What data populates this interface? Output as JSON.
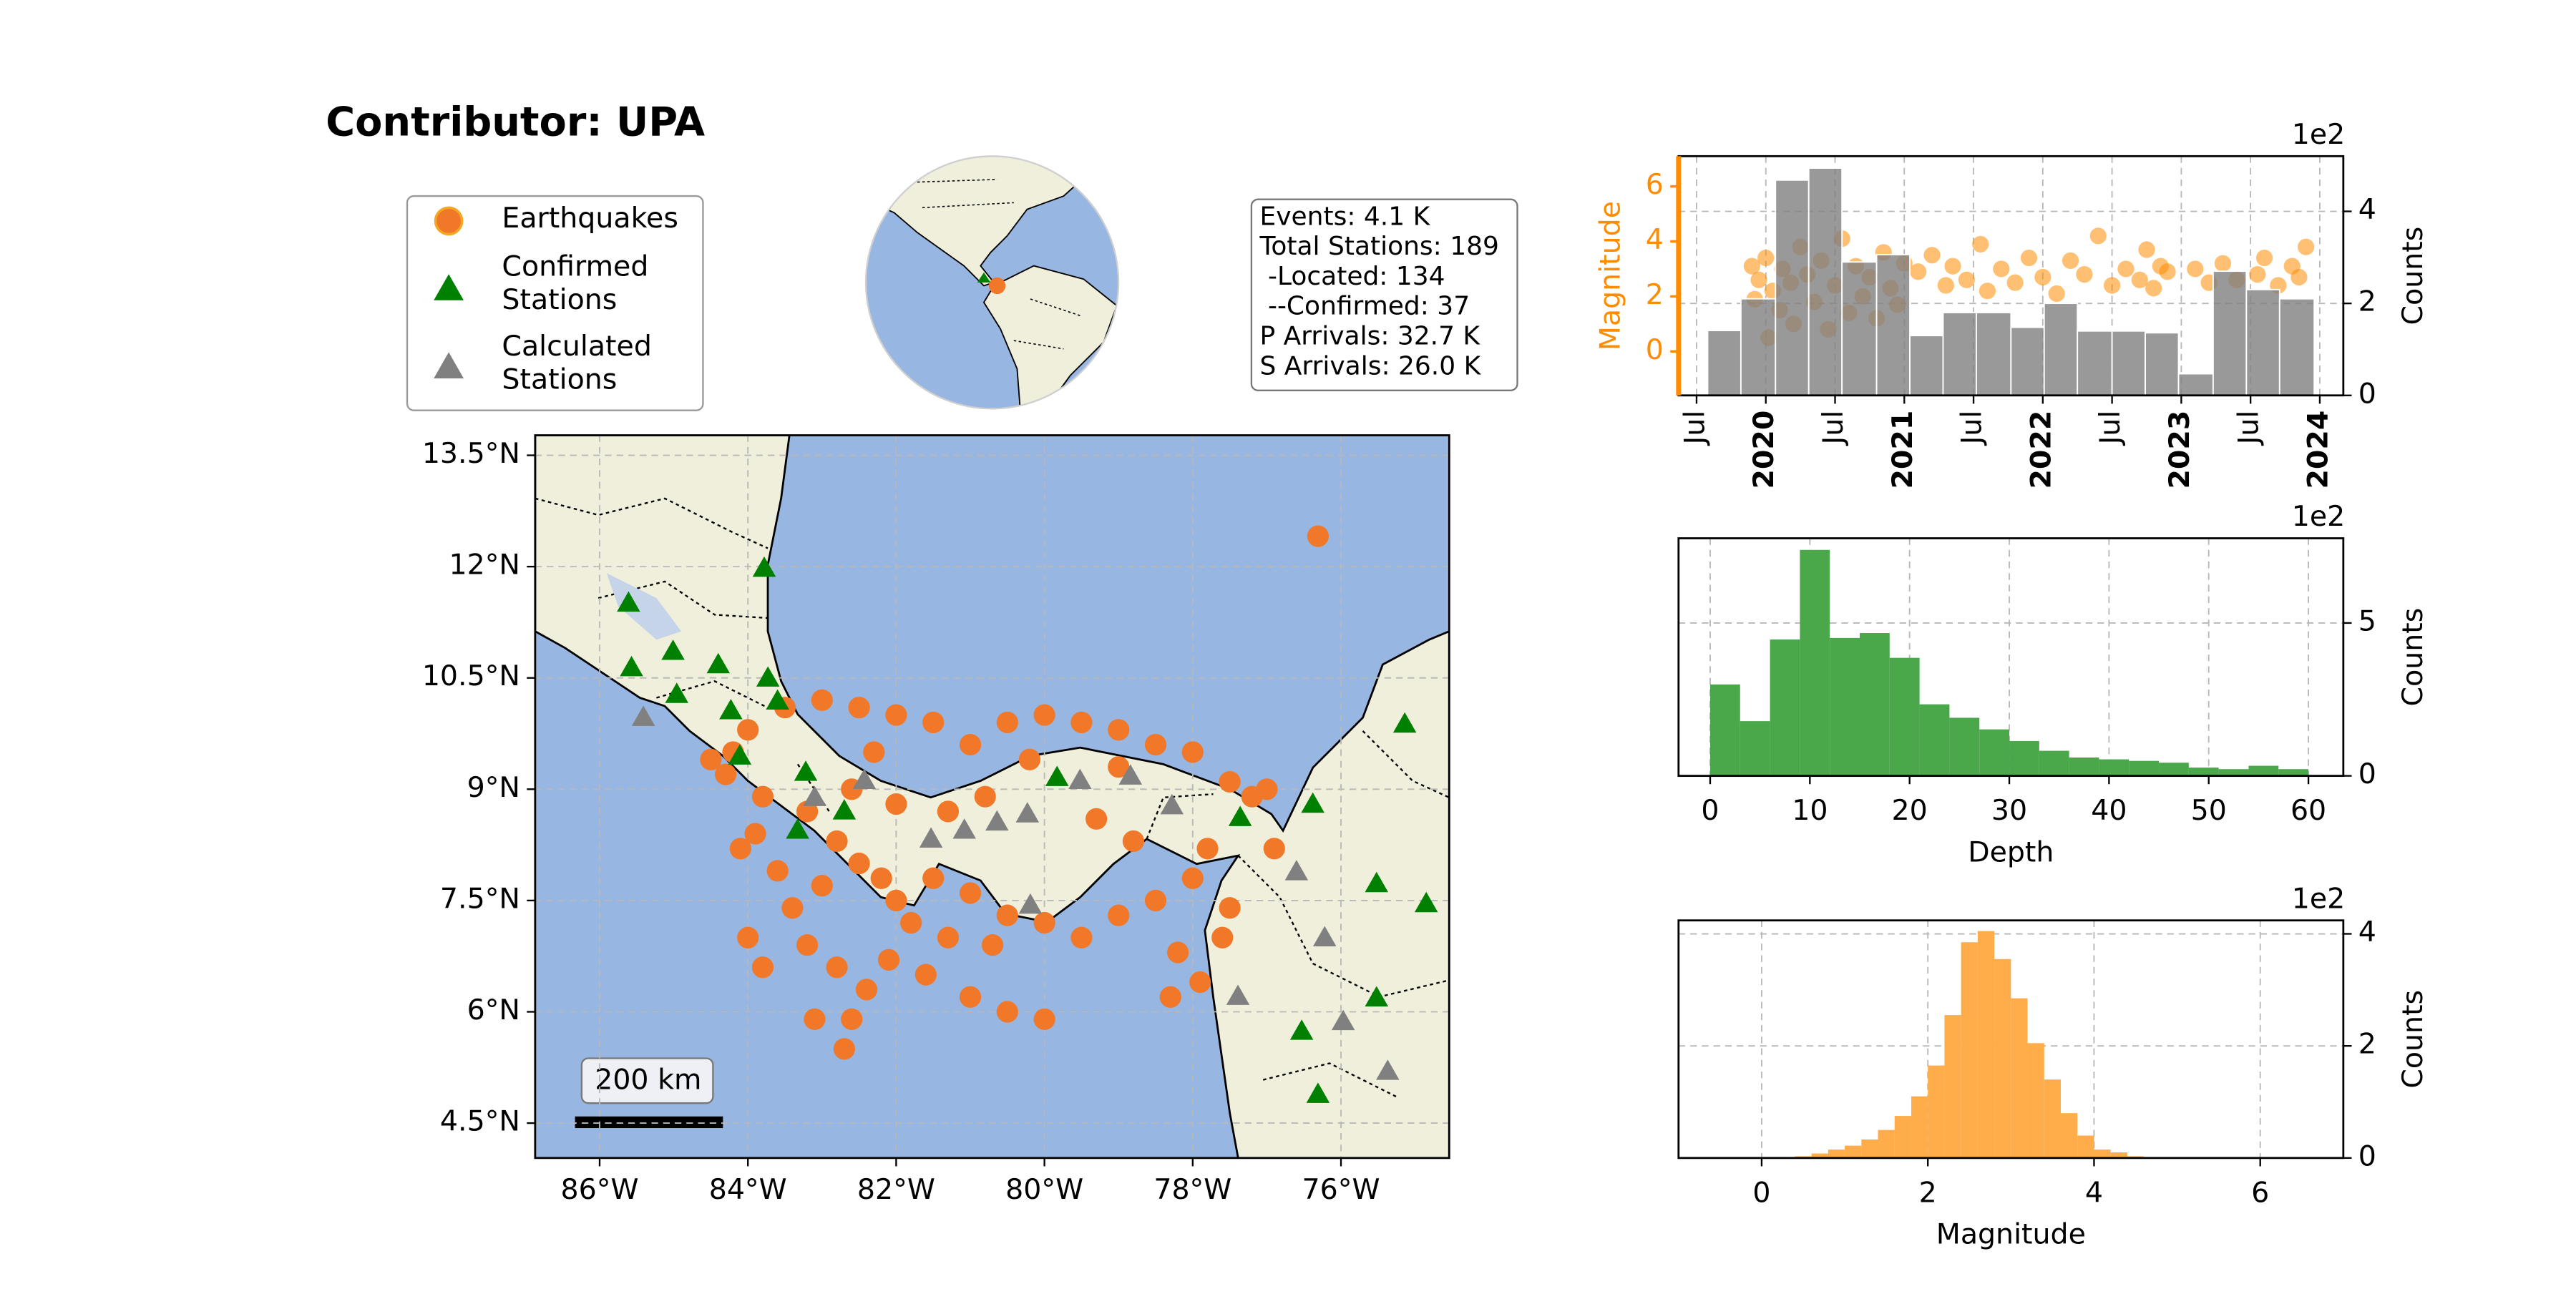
{
  "chart_data": [
    {
      "type": "map",
      "title": "Contributor: UPA",
      "xlim": [
        -86.87,
        -74.54
      ],
      "ylim": [
        4.03,
        13.77
      ],
      "xticks": [
        {
          "value": -86,
          "label": "86°W"
        },
        {
          "value": -84,
          "label": "84°W"
        },
        {
          "value": -82,
          "label": "82°W"
        },
        {
          "value": -80,
          "label": "80°W"
        },
        {
          "value": -78,
          "label": "78°W"
        },
        {
          "value": -76,
          "label": "76°W"
        }
      ],
      "yticks": [
        {
          "value": 13.5,
          "label": "13.5°N"
        },
        {
          "value": 12,
          "label": "12°N"
        },
        {
          "value": 10.5,
          "label": "10.5°N"
        },
        {
          "value": 9,
          "label": "9°N"
        },
        {
          "value": 7.5,
          "label": "7.5°N"
        },
        {
          "value": 6,
          "label": "6°N"
        },
        {
          "value": 4.5,
          "label": "4.5°N"
        }
      ],
      "grid": true,
      "legend": "upper left",
      "scale_bar": "200 km",
      "info": [
        "Events: 4.1 K",
        "Total Stations: 189",
        " -Located: 134",
        " --Confirmed: 37",
        "P Arrivals: 32.7 K",
        "S Arrivals: 26.0 K"
      ],
      "series": [
        {
          "name": "Earthquakes",
          "color": "#f07828",
          "marker": "circle",
          "x": [
            -76.31,
            -83.0,
            -82.5,
            -82.0,
            -81.5,
            -81.0,
            -80.5,
            -80.0,
            -79.5,
            -79.0,
            -78.5,
            -78.0,
            -77.5,
            -77.2,
            -83.5,
            -84.0,
            -84.2,
            -84.3,
            -83.8,
            -83.2,
            -82.8,
            -82.5,
            -82.2,
            -82.0,
            -81.8,
            -81.5,
            -81.0,
            -80.5,
            -80.0,
            -79.5,
            -79.0,
            -78.5,
            -78.0,
            -77.8,
            -77.6,
            -78.2,
            -77.9,
            -78.8,
            -79.3,
            -80.8,
            -81.3,
            -82.0,
            -82.6,
            -83.0,
            -83.4,
            -83.6,
            -84.0,
            -83.8,
            -83.2,
            -82.8,
            -82.4,
            -82.6,
            -82.7,
            -83.1,
            -82.1,
            -81.6,
            -81.0,
            -80.5,
            -80.0,
            -81.3,
            -80.7,
            -84.1,
            -84.5,
            -83.9,
            -79.0,
            -77.5,
            -78.3,
            -80.2,
            -82.3,
            -76.9,
            -77.0
          ],
          "y": [
            12.41,
            10.2,
            10.1,
            10.0,
            9.9,
            9.6,
            9.9,
            10.0,
            9.9,
            9.8,
            9.6,
            9.5,
            9.1,
            8.9,
            10.1,
            9.8,
            9.5,
            9.2,
            8.9,
            8.7,
            8.3,
            8.0,
            7.8,
            7.5,
            7.2,
            7.8,
            7.6,
            7.3,
            7.2,
            7.0,
            7.3,
            7.5,
            7.8,
            8.2,
            7.0,
            6.8,
            6.4,
            8.3,
            8.6,
            8.9,
            8.7,
            8.8,
            9.0,
            7.7,
            7.4,
            7.9,
            7.0,
            6.6,
            6.9,
            6.6,
            6.3,
            5.9,
            5.5,
            5.9,
            6.7,
            6.5,
            6.2,
            6.0,
            5.9,
            7.0,
            6.9,
            8.2,
            9.4,
            8.4,
            9.3,
            7.4,
            6.2,
            9.4,
            9.5,
            8.2,
            9.0
          ]
        },
        {
          "name": "Confirmed Stations",
          "color": "#008000",
          "marker": "triangle",
          "x": [
            -83.78,
            -85.61,
            -85.57,
            -85.01,
            -84.4,
            -83.73,
            -84.23,
            -83.6,
            -84.11,
            -83.22,
            -83.33,
            -82.7,
            -79.83,
            -77.36,
            -76.38,
            -75.14,
            -75.52,
            -74.85,
            -75.52,
            -76.53,
            -76.31,
            -84.96
          ],
          "y": [
            11.98,
            11.51,
            10.64,
            10.86,
            10.68,
            10.5,
            10.06,
            10.19,
            9.45,
            9.23,
            8.45,
            8.71,
            9.16,
            8.62,
            8.8,
            9.88,
            7.73,
            7.46,
            6.19,
            5.74,
            4.89,
            10.28
          ]
        },
        {
          "name": "Calculated Stations",
          "color": "#808080",
          "marker": "triangle",
          "x": [
            -85.41,
            -83.1,
            -82.43,
            -81.53,
            -81.08,
            -80.64,
            -80.19,
            -79.52,
            -78.84,
            -78.28,
            -76.6,
            -76.22,
            -75.97,
            -75.37,
            -77.39,
            -80.23
          ],
          "y": [
            9.97,
            8.89,
            9.12,
            8.33,
            8.45,
            8.56,
            7.44,
            9.12,
            9.18,
            8.78,
            7.89,
            7.0,
            5.87,
            5.2,
            6.21,
            8.67
          ]
        }
      ]
    },
    {
      "type": "combo",
      "xlim": [
        2019.37,
        2024.17
      ],
      "xticks": [
        {
          "value": 2019.5,
          "label": "Jul"
        },
        2020,
        {
          "value": 2020.5,
          "label": "Jul"
        },
        2021,
        {
          "value": 2021.5,
          "label": "Jul"
        },
        2022,
        {
          "value": 2022.5,
          "label": "Jul"
        },
        2023,
        {
          "value": 2023.5,
          "label": "Jul"
        },
        2024
      ],
      "ylim": [
        -1.6,
        7.1
      ],
      "yticks": [
        0,
        2,
        4,
        6
      ],
      "ylabel": "Magnitude",
      "y2lim": [
        0,
        5.2
      ],
      "y2ticks": [
        0,
        2,
        4
      ],
      "y2label": "Counts",
      "y2offset": "1e2",
      "grid": true,
      "points": {
        "color": "#ff8c00",
        "x": [
          2019.9,
          2019.95,
          2020.0,
          2020.05,
          2020.1,
          2020.12,
          2020.18,
          2020.2,
          2020.25,
          2020.3,
          2020.35,
          2020.4,
          2020.45,
          2020.5,
          2020.55,
          2020.6,
          2020.65,
          2020.7,
          2020.75,
          2020.8,
          2020.85,
          2020.9,
          2020.95,
          2021.0,
          2021.1,
          2021.2,
          2021.3,
          2021.35,
          2021.45,
          2021.55,
          2021.6,
          2021.7,
          2021.8,
          2021.9,
          2022.0,
          2022.1,
          2022.2,
          2022.3,
          2022.4,
          2022.5,
          2022.6,
          2022.7,
          2022.75,
          2022.8,
          2022.85,
          2022.9,
          2023.1,
          2023.2,
          2023.3,
          2023.4,
          2023.55,
          2023.6,
          2023.7,
          2023.8,
          2023.9,
          2023.85,
          2019.92,
          2020.02
        ],
        "y": [
          3.1,
          2.6,
          3.4,
          2.2,
          1.5,
          3.0,
          2.5,
          1.0,
          3.8,
          2.8,
          1.8,
          3.3,
          0.8,
          2.4,
          4.1,
          1.4,
          3.1,
          2.0,
          2.7,
          1.2,
          3.6,
          2.3,
          1.7,
          3.2,
          2.9,
          3.5,
          2.4,
          3.1,
          2.6,
          3.9,
          2.2,
          3.0,
          2.5,
          3.4,
          2.7,
          2.1,
          3.3,
          2.8,
          4.2,
          2.4,
          3.0,
          2.6,
          3.7,
          2.3,
          3.1,
          2.9,
          3.0,
          2.5,
          3.2,
          2.6,
          2.8,
          3.4,
          2.4,
          3.1,
          3.8,
          2.7,
          1.9,
          0.5
        ]
      },
      "bars": {
        "color": "#808080",
        "axis": "y2",
        "bins": [
          2019.58,
          2019.82,
          2020.07,
          2020.31,
          2020.55,
          2020.8,
          2021.04,
          2021.28,
          2021.52,
          2021.77,
          2022.01,
          2022.25,
          2022.5,
          2022.74,
          2022.98,
          2023.23,
          2023.47,
          2023.71,
          2023.96
        ],
        "values": [
          1.41,
          2.1,
          4.68,
          4.94,
          2.9,
          3.06,
          1.3,
          1.8,
          1.8,
          1.48,
          2.0,
          1.4,
          1.4,
          1.36,
          0.47,
          2.7,
          2.3,
          2.1
        ]
      }
    },
    {
      "type": "histogram",
      "color": "#4aa84a",
      "bins": [
        0,
        3,
        6,
        9,
        12,
        15,
        18,
        21,
        24,
        27,
        30,
        33,
        36,
        39,
        42,
        45,
        48,
        51,
        54,
        57,
        60
      ],
      "values": [
        2.99,
        1.79,
        4.46,
        7.39,
        4.51,
        4.67,
        3.86,
        2.34,
        1.9,
        1.52,
        1.14,
        0.82,
        0.6,
        0.54,
        0.49,
        0.43,
        0.27,
        0.22,
        0.33,
        0.22
      ],
      "xlim": [
        -3.17,
        63.5
      ],
      "xticks": [
        0,
        10,
        20,
        30,
        40,
        50,
        60
      ],
      "ylim": [
        0,
        7.77
      ],
      "yticks": [
        0,
        5
      ],
      "xlabel": "Depth",
      "ylabel": "Counts",
      "offset": "1e2",
      "grid": true
    },
    {
      "type": "histogram",
      "color": "#ffad4a",
      "bins": [
        0.4,
        0.6,
        0.8,
        1.0,
        1.2,
        1.4,
        1.6,
        1.8,
        2.0,
        2.2,
        2.4,
        2.6,
        2.8,
        3.0,
        3.2,
        3.4,
        3.6,
        3.8,
        4.0,
        4.2,
        4.4,
        4.6
      ],
      "values": [
        0.03,
        0.08,
        0.15,
        0.22,
        0.33,
        0.5,
        0.75,
        1.1,
        1.65,
        2.55,
        3.85,
        4.05,
        3.55,
        2.85,
        2.05,
        1.4,
        0.8,
        0.4,
        0.15,
        0.1,
        0.03
      ],
      "xlim": [
        -1,
        7
      ],
      "xticks": [
        0,
        2,
        4,
        6
      ],
      "ylim": [
        0,
        4.24
      ],
      "yticks": [
        0,
        2,
        4
      ],
      "xlabel": "Magnitude",
      "ylabel": "Counts",
      "offset": "1e2",
      "grid": true
    }
  ]
}
